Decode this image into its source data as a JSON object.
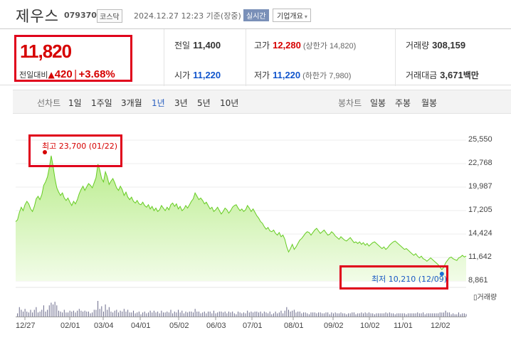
{
  "header": {
    "stock_name": "제우스",
    "stock_code": "079370",
    "market": "코스닥",
    "timestamp": "2024.12.27 12:23 기준(장중)",
    "realtime_badge": "실시간",
    "company_button": "기업개요"
  },
  "quote": {
    "price": "11,820",
    "change_label": "전일대비",
    "change_value": "420",
    "change_pct": "+3.68%",
    "prev_close_label": "전일",
    "prev_close": "11,400",
    "high_label": "고가",
    "high": "12,280",
    "upper_limit": "(상한가 14,820)",
    "volume_label": "거래량",
    "volume": "308,159",
    "open_label": "시가",
    "open": "11,220",
    "low_label": "저가",
    "low": "11,220",
    "lower_limit": "(하한가 7,980)",
    "amount_label": "거래대금",
    "amount": "3,671",
    "amount_unit": "백만"
  },
  "periods": {
    "label": "선차트",
    "items": [
      "1일",
      "1주일",
      "3개월",
      "1년",
      "3년",
      "5년",
      "10년"
    ],
    "active": "1년",
    "candle_label": "봉차트",
    "candle_items": [
      "일봉",
      "주봉",
      "월봉"
    ]
  },
  "chart_data": {
    "type": "area",
    "y_ticks": [
      "25,550",
      "22,768",
      "19,987",
      "17,205",
      "14,424",
      "11,642",
      "8,861"
    ],
    "ylim": [
      8861,
      25550
    ],
    "x_ticks": [
      "12/27",
      "02/01",
      "03/04",
      "04/01",
      "05/02",
      "06/03",
      "07/01",
      "08/01",
      "09/02",
      "10/02",
      "11/01",
      "12/02"
    ],
    "max_annotation": "최고 23,700 (01/22)",
    "min_annotation": "최저 10,210 (12/09)",
    "volume_label": "거래량",
    "series": [
      {
        "values": [
          15900,
          16100,
          17000,
          17600,
          17200,
          17900,
          18300,
          18000,
          17400,
          17100,
          17700,
          18600,
          18900,
          18500,
          19100,
          20200,
          20600,
          21200,
          22300,
          23700,
          22500,
          21000,
          19900,
          19400,
          19000,
          19300,
          18700,
          18400,
          18700,
          18200,
          17800,
          18300,
          18000,
          18500,
          19200,
          19700,
          20100,
          19600,
          20000,
          20400,
          20200,
          19900,
          20500,
          21100,
          22700,
          22000,
          21000,
          20600,
          21800,
          21200,
          20300,
          20700,
          21000,
          20500,
          19900,
          19600,
          20100,
          19700,
          19000,
          19400,
          18800,
          18500,
          18800,
          18300,
          18100,
          18400,
          18000,
          17900,
          18200,
          17800,
          17600,
          17900,
          17400,
          17700,
          17200,
          17500,
          17100,
          17300,
          17800,
          17500,
          17200,
          17600,
          17300,
          17900,
          18100,
          17700,
          18000,
          17400,
          17700,
          17200,
          17400,
          17800,
          17500,
          17900,
          18300,
          18600,
          19300,
          18900,
          18500,
          18700,
          18400,
          18000,
          18200,
          17800,
          17400,
          17600,
          17100,
          17300,
          17600,
          17200,
          16800,
          17100,
          17500,
          17300,
          16900,
          17200,
          17600,
          17800,
          17900,
          17500,
          17200,
          17400,
          17100,
          17300,
          17800,
          17500,
          17100,
          17400,
          17000,
          16600,
          16300,
          15900,
          15700,
          15300,
          15000,
          15200,
          14800,
          14700,
          14900,
          14500,
          14300,
          14600,
          14100,
          14300,
          13800,
          12900,
          12300,
          12700,
          13200,
          12600,
          12900,
          13300,
          13700,
          13900,
          14200,
          14500,
          14700,
          14600,
          14300,
          14600,
          14900,
          15100,
          14800,
          14500,
          14700,
          14900,
          14600,
          14300,
          14400,
          14700,
          14500,
          14200,
          14000,
          13800,
          14100,
          13900,
          13700,
          13600,
          13800,
          14000,
          13700,
          13400,
          13500,
          13300,
          13500,
          13200,
          13400,
          13100,
          13300,
          13000,
          13200,
          13400,
          13500,
          13300,
          13100,
          12900,
          12700,
          12900,
          12600,
          12800,
          13100,
          13300,
          13500,
          13600,
          13400,
          13200,
          13000,
          12800,
          12600,
          12700,
          12500,
          12300,
          12100,
          11900,
          12100,
          11800,
          11600,
          11800,
          11500,
          11400,
          11200,
          11400,
          11600,
          11400,
          11200,
          11000,
          10800,
          10500,
          10210,
          10500,
          11000,
          11300,
          11600,
          11700,
          11500,
          11400,
          11300,
          11600,
          11700,
          11900,
          11700,
          11820
        ]
      }
    ]
  }
}
